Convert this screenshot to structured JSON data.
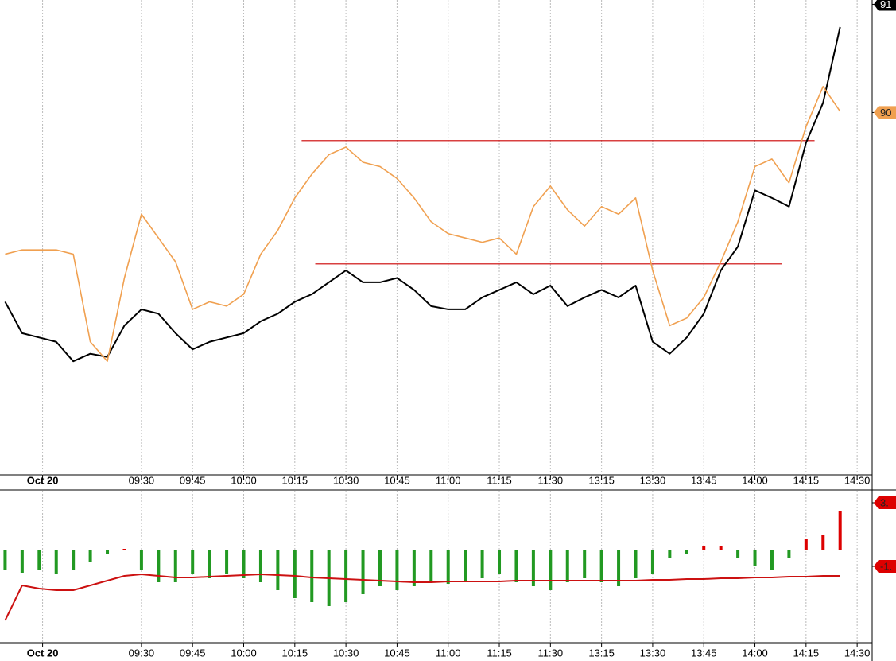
{
  "chart_data": [
    {
      "type": "line",
      "x": [
        -40,
        -35,
        -30,
        -25,
        -20,
        -15,
        -10,
        -5,
        0,
        5,
        10,
        15,
        20,
        25,
        30,
        35,
        40,
        45,
        50,
        55,
        60,
        65,
        70,
        75,
        80,
        85,
        90,
        95,
        100,
        105,
        110,
        115,
        120,
        125,
        130,
        135,
        140,
        145,
        150,
        155,
        160,
        165,
        170,
        175,
        180,
        185,
        190,
        195,
        200,
        205
      ],
      "series": [
        {
          "color": "#000000",
          "values": [
            88.25,
            87.96,
            87.92,
            87.88,
            87.7,
            87.77,
            87.74,
            88.03,
            88.18,
            88.14,
            87.96,
            87.81,
            87.88,
            87.92,
            87.96,
            88.07,
            88.14,
            88.25,
            88.32,
            88.43,
            88.54,
            88.43,
            88.43,
            88.47,
            88.36,
            88.21,
            88.18,
            88.18,
            88.29,
            88.36,
            88.43,
            88.32,
            88.4,
            88.21,
            88.29,
            88.36,
            88.29,
            88.4,
            87.88,
            87.77,
            87.92,
            88.14,
            88.54,
            88.76,
            89.28,
            89.21,
            89.13,
            89.72,
            90.09,
            90.79
          ]
        },
        {
          "color": "#f0a050",
          "values": [
            88.69,
            88.73,
            88.73,
            88.73,
            88.69,
            87.88,
            87.7,
            88.47,
            89.06,
            88.84,
            88.62,
            88.18,
            88.25,
            88.21,
            88.32,
            88.69,
            88.91,
            89.21,
            89.43,
            89.61,
            89.68,
            89.54,
            89.5,
            89.39,
            89.21,
            88.99,
            88.88,
            88.84,
            88.8,
            88.84,
            88.69,
            89.13,
            89.32,
            89.1,
            88.95,
            89.13,
            89.06,
            89.21,
            88.54,
            88.03,
            88.1,
            88.29,
            88.62,
            88.99,
            89.5,
            89.57,
            89.35,
            89.87,
            90.24,
            90.01
          ]
        }
      ],
      "levels": [
        {
          "value": 89.74,
          "x_start": 47,
          "x_end": 197.5,
          "color": "#cc0000"
        },
        {
          "value": 88.6,
          "x_start": 51,
          "x_end": 188,
          "color": "#cc0000"
        }
      ],
      "xlim": [
        -41.5,
        214.4
      ],
      "ylim": [
        86.65,
        91.04
      ],
      "xticks": [
        {
          "value": -29,
          "label": "Oct 20"
        },
        {
          "value": 0,
          "label": "09:30"
        },
        {
          "value": 15,
          "label": "09:45"
        },
        {
          "value": 30,
          "label": "10:00"
        },
        {
          "value": 45,
          "label": "10:15"
        },
        {
          "value": 60,
          "label": "10:30"
        },
        {
          "value": 75,
          "label": "10:45"
        },
        {
          "value": 90,
          "label": "11:00"
        },
        {
          "value": 105,
          "label": "11:15"
        },
        {
          "value": 120,
          "label": "11:30"
        },
        {
          "value": 135,
          "label": "13:15"
        },
        {
          "value": 150,
          "label": "13:30"
        },
        {
          "value": 165,
          "label": "13:45"
        },
        {
          "value": 180,
          "label": "14:00"
        },
        {
          "value": 195,
          "label": "14:15"
        },
        {
          "value": 210,
          "label": "14:30"
        }
      ],
      "yticks": [
        91,
        90
      ],
      "ytick_colors": [
        "#000000",
        "#f0a050"
      ],
      "grid": true
    },
    {
      "type": "bar",
      "x": [
        -40,
        -35,
        -30,
        -25,
        -20,
        -15,
        -10,
        -5,
        0,
        5,
        10,
        15,
        20,
        25,
        30,
        35,
        40,
        45,
        50,
        55,
        60,
        65,
        70,
        75,
        80,
        85,
        90,
        95,
        100,
        105,
        110,
        115,
        120,
        125,
        130,
        135,
        140,
        145,
        150,
        155,
        160,
        165,
        170,
        175,
        180,
        185,
        190,
        195,
        200,
        205
      ],
      "values": [
        -1.25,
        -1.4,
        -1.25,
        -1.5,
        -1.25,
        -0.75,
        -0.25,
        0.1,
        -1.25,
        -2,
        -2,
        -1.5,
        -1.75,
        -1.5,
        -1.75,
        -2,
        -2.5,
        -3,
        -3.25,
        -3.5,
        -3.25,
        -2.75,
        -2.25,
        -2.5,
        -2.25,
        -2,
        -2.1,
        -2,
        -1.75,
        -1.5,
        -2,
        -2.25,
        -2.5,
        -2,
        -1.75,
        -2,
        -2.25,
        -1.75,
        -1.5,
        -0.5,
        -0.25,
        0.25,
        0.25,
        -0.5,
        -1,
        -1.25,
        -0.5,
        0.75,
        1,
        2.5
      ],
      "positive_color": "#dd0000",
      "negative_color": "#229922",
      "line": {
        "color": "#cc1111",
        "values": [
          -4.4,
          -2.2,
          -2.4,
          -2.5,
          -2.5,
          -2.2,
          -1.9,
          -1.6,
          -1.5,
          -1.6,
          -1.7,
          -1.7,
          -1.65,
          -1.6,
          -1.55,
          -1.5,
          -1.55,
          -1.6,
          -1.7,
          -1.75,
          -1.8,
          -1.85,
          -1.9,
          -1.95,
          -2.0,
          -2.0,
          -1.95,
          -1.95,
          -1.95,
          -1.95,
          -1.9,
          -1.9,
          -1.9,
          -1.9,
          -1.9,
          -1.9,
          -1.9,
          -1.9,
          -1.85,
          -1.85,
          -1.8,
          -1.8,
          -1.75,
          -1.75,
          -1.7,
          -1.7,
          -1.65,
          -1.65,
          -1.6,
          -1.6
        ]
      },
      "xlim": [
        -41.5,
        214.4
      ],
      "ylim": [
        -5.8,
        3.75
      ],
      "xticks": [
        {
          "value": -29,
          "label": "Oct 20"
        },
        {
          "value": 0,
          "label": "09:30"
        },
        {
          "value": 15,
          "label": "09:45"
        },
        {
          "value": 30,
          "label": "10:00"
        },
        {
          "value": 45,
          "label": "10:15"
        },
        {
          "value": 60,
          "label": "10:30"
        },
        {
          "value": 75,
          "label": "10:45"
        },
        {
          "value": 90,
          "label": "11:00"
        },
        {
          "value": 105,
          "label": "11:15"
        },
        {
          "value": 120,
          "label": "11:30"
        },
        {
          "value": 135,
          "label": "13:15"
        },
        {
          "value": 150,
          "label": "13:30"
        },
        {
          "value": 165,
          "label": "13:45"
        },
        {
          "value": 180,
          "label": "14:00"
        },
        {
          "value": 195,
          "label": "14:15"
        },
        {
          "value": 210,
          "label": "14:30"
        }
      ],
      "yticks": [
        {
          "value": 3,
          "label": "3."
        },
        {
          "value": -1,
          "label": "-1."
        }
      ],
      "ytick_colors": [
        "#dd0000",
        "#dd0000"
      ],
      "grid": true
    }
  ]
}
